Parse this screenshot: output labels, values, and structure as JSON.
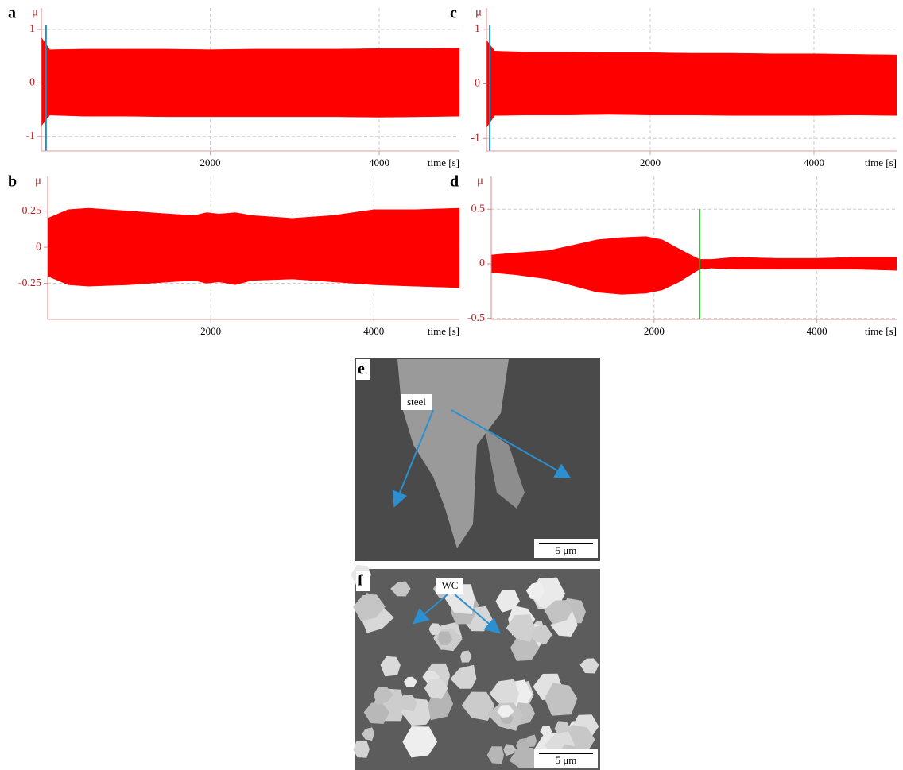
{
  "chart_data": [
    {
      "type": "area",
      "label": "a",
      "ylabel": "μ",
      "xlabel": "time [s]",
      "x": [
        0,
        100,
        500,
        1000,
        1500,
        2000,
        2500,
        3000,
        3500,
        4000,
        4500,
        4950
      ],
      "series": [
        {
          "color": "#ff0000",
          "values": [
            0.85,
            0.62,
            0.63,
            0.63,
            0.63,
            0.62,
            0.63,
            0.63,
            0.63,
            0.64,
            0.64,
            0.65
          ]
        },
        {
          "color": "#ff0000",
          "values": [
            -0.8,
            -0.6,
            -0.62,
            -0.62,
            -0.63,
            -0.63,
            -0.63,
            -0.63,
            -0.63,
            -0.64,
            -0.63,
            -0.62
          ]
        }
      ],
      "xlim": [
        0,
        4950
      ],
      "ylim": [
        -1.27,
        1.4
      ],
      "xticks": [
        2000,
        4000
      ],
      "yticks": [
        -1,
        0,
        1
      ],
      "markers": [
        {
          "x": 55,
          "color": "#1a8fc4"
        }
      ],
      "grid": true
    },
    {
      "type": "area",
      "label": "b",
      "ylabel": "μ",
      "xlabel": "time [s]",
      "x": [
        0,
        250,
        500,
        1000,
        1500,
        1800,
        1950,
        2100,
        2300,
        2500,
        3000,
        3500,
        4000,
        4500,
        5050
      ],
      "series": [
        {
          "color": "#ff0000",
          "values": [
            0.2,
            0.26,
            0.27,
            0.25,
            0.23,
            0.22,
            0.24,
            0.23,
            0.24,
            0.22,
            0.2,
            0.22,
            0.26,
            0.26,
            0.27
          ]
        },
        {
          "color": "#ff0000",
          "values": [
            -0.2,
            -0.26,
            -0.27,
            -0.26,
            -0.24,
            -0.23,
            -0.25,
            -0.24,
            -0.26,
            -0.23,
            -0.22,
            -0.24,
            -0.26,
            -0.27,
            -0.28
          ]
        }
      ],
      "xlim": [
        0,
        5050
      ],
      "ylim": [
        -0.5,
        0.49
      ],
      "xticks": [
        2000,
        4000
      ],
      "yticks": [
        -0.25,
        0,
        0.25
      ],
      "markers": [],
      "grid": true
    },
    {
      "type": "area",
      "label": "c",
      "ylabel": "μ",
      "xlabel": "time [s]",
      "x": [
        0,
        100,
        500,
        1000,
        1500,
        2000,
        2500,
        3000,
        3500,
        4000,
        4500,
        5010
      ],
      "series": [
        {
          "color": "#ff0000",
          "values": [
            0.8,
            0.6,
            0.58,
            0.58,
            0.57,
            0.57,
            0.56,
            0.56,
            0.55,
            0.55,
            0.54,
            0.53
          ]
        },
        {
          "color": "#ff0000",
          "values": [
            -0.8,
            -0.58,
            -0.57,
            -0.57,
            -0.56,
            -0.57,
            -0.57,
            -0.58,
            -0.58,
            -0.58,
            -0.57,
            -0.58
          ]
        }
      ],
      "xlim": [
        0,
        5010
      ],
      "ylim": [
        -1.23,
        1.39
      ],
      "xticks": [
        2000,
        4000
      ],
      "yticks": [
        -1,
        0,
        1
      ],
      "markers": [
        {
          "x": 40,
          "color": "#1a8fc4"
        }
      ],
      "grid": true
    },
    {
      "type": "area",
      "label": "d",
      "ylabel": "μ",
      "xlabel": "time [s]",
      "x": [
        0,
        300,
        700,
        1000,
        1300,
        1600,
        1900,
        2100,
        2300,
        2450,
        2560,
        2700,
        3000,
        3500,
        4000,
        4500,
        4980
      ],
      "series": [
        {
          "color": "#ff0000",
          "values": [
            0.08,
            0.1,
            0.12,
            0.17,
            0.22,
            0.24,
            0.25,
            0.22,
            0.14,
            0.08,
            0.04,
            0.04,
            0.06,
            0.05,
            0.05,
            0.06,
            0.06
          ]
        },
        {
          "color": "#ff0000",
          "values": [
            -0.08,
            -0.1,
            -0.14,
            -0.2,
            -0.26,
            -0.28,
            -0.27,
            -0.24,
            -0.17,
            -0.1,
            -0.05,
            -0.04,
            -0.05,
            -0.05,
            -0.05,
            -0.05,
            -0.06
          ]
        }
      ],
      "xlim": [
        0,
        4980
      ],
      "ylim": [
        -0.51,
        0.8
      ],
      "xticks": [
        2000,
        4000
      ],
      "yticks": [
        -0.5,
        0,
        0.5
      ],
      "markers": [
        {
          "x": 2560,
          "color": "#2aa02a"
        }
      ],
      "grid": true
    }
  ],
  "images": [
    {
      "label": "e",
      "annotation": "steel",
      "scale": "5 μm"
    },
    {
      "label": "f",
      "annotation": "WC",
      "scale": "5 μm"
    }
  ]
}
